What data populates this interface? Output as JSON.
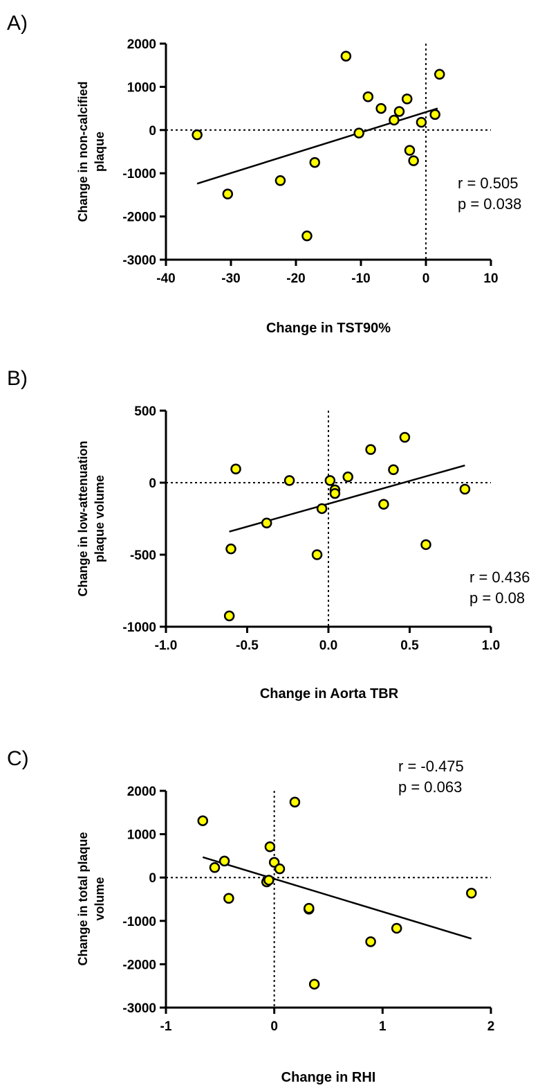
{
  "chart_data": [
    {
      "panel_label": "A)",
      "type": "scatter",
      "xlabel": "Change in TST90%",
      "ylabel": [
        "Change in non-calcified",
        "plaque"
      ],
      "xlim": [
        -40,
        10
      ],
      "ylim": [
        -3000,
        2000
      ],
      "xticks": [
        -40,
        -30,
        -20,
        -10,
        0,
        10
      ],
      "xtick_labels": [
        "-40",
        "-30",
        "-20",
        "-10",
        "0",
        "10"
      ],
      "yticks": [
        -3000,
        -2000,
        -1000,
        0,
        1000,
        2000
      ],
      "ytick_labels": [
        "-3000",
        "-2000",
        "-1000",
        "0",
        "1000",
        "2000"
      ],
      "reference_lines": {
        "x": 0,
        "y": 0,
        "style": "dotted"
      },
      "points": [
        {
          "x": -35.2,
          "y": -110
        },
        {
          "x": -30.5,
          "y": -1480
        },
        {
          "x": -22.4,
          "y": -1170
        },
        {
          "x": -18.3,
          "y": -2450
        },
        {
          "x": -17.1,
          "y": -750
        },
        {
          "x": -12.3,
          "y": 1710
        },
        {
          "x": -10.3,
          "y": -70
        },
        {
          "x": -8.9,
          "y": 770
        },
        {
          "x": -6.9,
          "y": 500
        },
        {
          "x": -4.9,
          "y": 230
        },
        {
          "x": -4.1,
          "y": 430
        },
        {
          "x": -2.9,
          "y": 720
        },
        {
          "x": -2.5,
          "y": -470
        },
        {
          "x": -1.9,
          "y": -710
        },
        {
          "x": -0.7,
          "y": 180
        },
        {
          "x": 1.4,
          "y": 360
        },
        {
          "x": 2.1,
          "y": 1290
        }
      ],
      "fit_line": {
        "x": [
          -35.2,
          1.8
        ],
        "y": [
          -1240,
          500
        ]
      },
      "stats": [
        "r = 0.505",
        "p = 0.038"
      ],
      "stats_position": "right",
      "marker_color": "#FFFF00",
      "line_color": "#000000"
    },
    {
      "panel_label": "B)",
      "type": "scatter",
      "xlabel": "Change in Aorta TBR",
      "ylabel": [
        "Change in low-attenuation",
        "plaque volume"
      ],
      "xlim": [
        -1.0,
        1.0
      ],
      "ylim": [
        -1000,
        500
      ],
      "xticks": [
        -1.0,
        -0.5,
        0.0,
        0.5,
        1.0
      ],
      "xtick_labels": [
        "-1.0",
        "-0.5",
        "0.0",
        "0.5",
        "1.0"
      ],
      "yticks": [
        -1000,
        -500,
        0,
        500
      ],
      "ytick_labels": [
        "-1000",
        "-500",
        "0",
        "500"
      ],
      "reference_lines": {
        "x": 0,
        "y": 0,
        "style": "dotted"
      },
      "points": [
        {
          "x": -0.61,
          "y": -925
        },
        {
          "x": -0.6,
          "y": -460
        },
        {
          "x": -0.57,
          "y": 95
        },
        {
          "x": -0.38,
          "y": -280
        },
        {
          "x": -0.24,
          "y": 15
        },
        {
          "x": -0.07,
          "y": -500
        },
        {
          "x": -0.04,
          "y": -180
        },
        {
          "x": 0.01,
          "y": 15
        },
        {
          "x": 0.04,
          "y": -50
        },
        {
          "x": 0.04,
          "y": -75
        },
        {
          "x": 0.12,
          "y": 40
        },
        {
          "x": 0.26,
          "y": 230
        },
        {
          "x": 0.34,
          "y": -150
        },
        {
          "x": 0.4,
          "y": 90
        },
        {
          "x": 0.47,
          "y": 315
        },
        {
          "x": 0.6,
          "y": -430
        },
        {
          "x": 0.84,
          "y": -45
        }
      ],
      "fit_line": {
        "x": [
          -0.61,
          0.84
        ],
        "y": [
          -340,
          120
        ]
      },
      "stats": [
        "r = 0.436",
        "p = 0.08"
      ],
      "stats_position": "right",
      "marker_color": "#FFFF00",
      "line_color": "#000000"
    },
    {
      "panel_label": "C)",
      "type": "scatter",
      "xlabel": "Change in RHI",
      "ylabel": [
        "Change in total plaque",
        "volume"
      ],
      "xlim": [
        -1,
        2
      ],
      "ylim": [
        -3000,
        2000
      ],
      "xticks": [
        -1,
        0,
        1,
        2
      ],
      "xtick_labels": [
        "-1",
        "0",
        "1",
        "2"
      ],
      "yticks": [
        -3000,
        -2000,
        -1000,
        0,
        1000,
        2000
      ],
      "ytick_labels": [
        "-3000",
        "-2000",
        "-1000",
        "0",
        "1000",
        "2000"
      ],
      "reference_lines": {
        "x": 0,
        "y": 0,
        "style": "dotted"
      },
      "points": [
        {
          "x": -0.66,
          "y": 1310
        },
        {
          "x": -0.55,
          "y": 230
        },
        {
          "x": -0.46,
          "y": 380
        },
        {
          "x": -0.42,
          "y": -480
        },
        {
          "x": -0.07,
          "y": -100
        },
        {
          "x": -0.05,
          "y": -60
        },
        {
          "x": -0.04,
          "y": 710
        },
        {
          "x": 0.0,
          "y": 350
        },
        {
          "x": 0.05,
          "y": 200
        },
        {
          "x": 0.19,
          "y": 1740
        },
        {
          "x": 0.32,
          "y": -730
        },
        {
          "x": 0.32,
          "y": -710
        },
        {
          "x": 0.37,
          "y": -2460
        },
        {
          "x": 0.89,
          "y": -1480
        },
        {
          "x": 1.13,
          "y": -1170
        },
        {
          "x": 1.82,
          "y": -360
        }
      ],
      "fit_line": {
        "x": [
          -0.66,
          1.82
        ],
        "y": [
          470,
          -1410
        ]
      },
      "stats": [
        "r = -0.475",
        "p = 0.063"
      ],
      "stats_position": "top-right",
      "marker_color": "#FFFF00",
      "line_color": "#000000"
    }
  ]
}
